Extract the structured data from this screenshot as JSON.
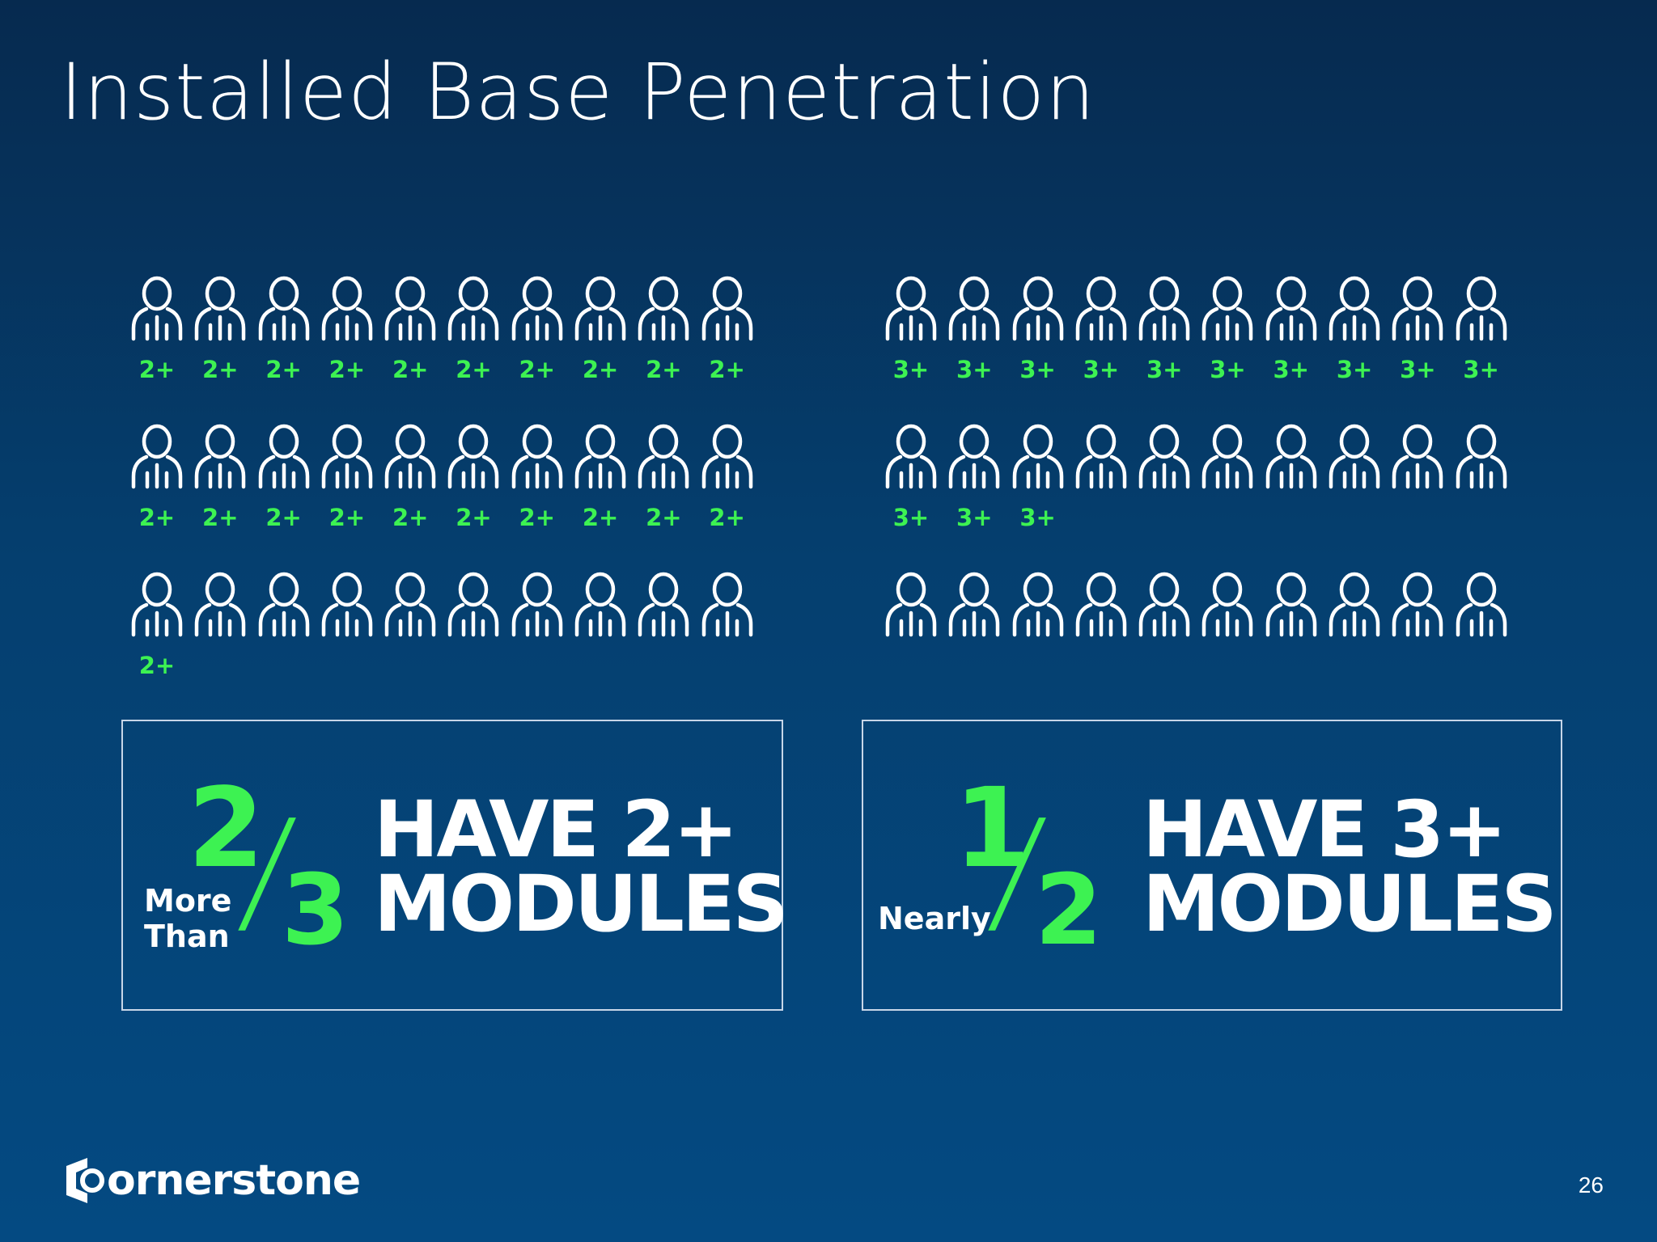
{
  "slide": {
    "title": "Installed Base Penetration",
    "page_number": "26",
    "logo_text": "ornerstone"
  },
  "left_panel": {
    "rows": [
      [
        "2+",
        "2+",
        "2+",
        "2+",
        "2+",
        "2+",
        "2+",
        "2+",
        "2+",
        "2+"
      ],
      [
        "2+",
        "2+",
        "2+",
        "2+",
        "2+",
        "2+",
        "2+",
        "2+",
        "2+",
        "2+"
      ],
      [
        "2+",
        "",
        "",
        "",
        "",
        "",
        "",
        "",
        "",
        ""
      ]
    ]
  },
  "right_panel": {
    "rows": [
      [
        "3+",
        "3+",
        "3+",
        "3+",
        "3+",
        "3+",
        "3+",
        "3+",
        "3+",
        "3+"
      ],
      [
        "3+",
        "3+",
        "3+",
        "",
        "",
        "",
        "",
        "",
        "",
        ""
      ],
      [
        "",
        "",
        "",
        "",
        "",
        "",
        "",
        "",
        "",
        ""
      ]
    ]
  },
  "stat_left": {
    "qualifier_line1": "More",
    "qualifier_line2": "Than",
    "numerator": "2",
    "denominator": "3",
    "headline_line1": "HAVE 2+",
    "headline_line2": "MODULES"
  },
  "stat_right": {
    "qualifier": "Nearly",
    "numerator": "1",
    "denominator": "2",
    "headline_line1": "HAVE 3+",
    "headline_line2": "MODULES"
  },
  "colors": {
    "accent_green": "#3df252",
    "background_top": "#062a4f",
    "background_bottom": "#044a82"
  },
  "icons": {
    "person": "person-outline-icon",
    "logo_mark": "cornerstone-c-icon"
  }
}
